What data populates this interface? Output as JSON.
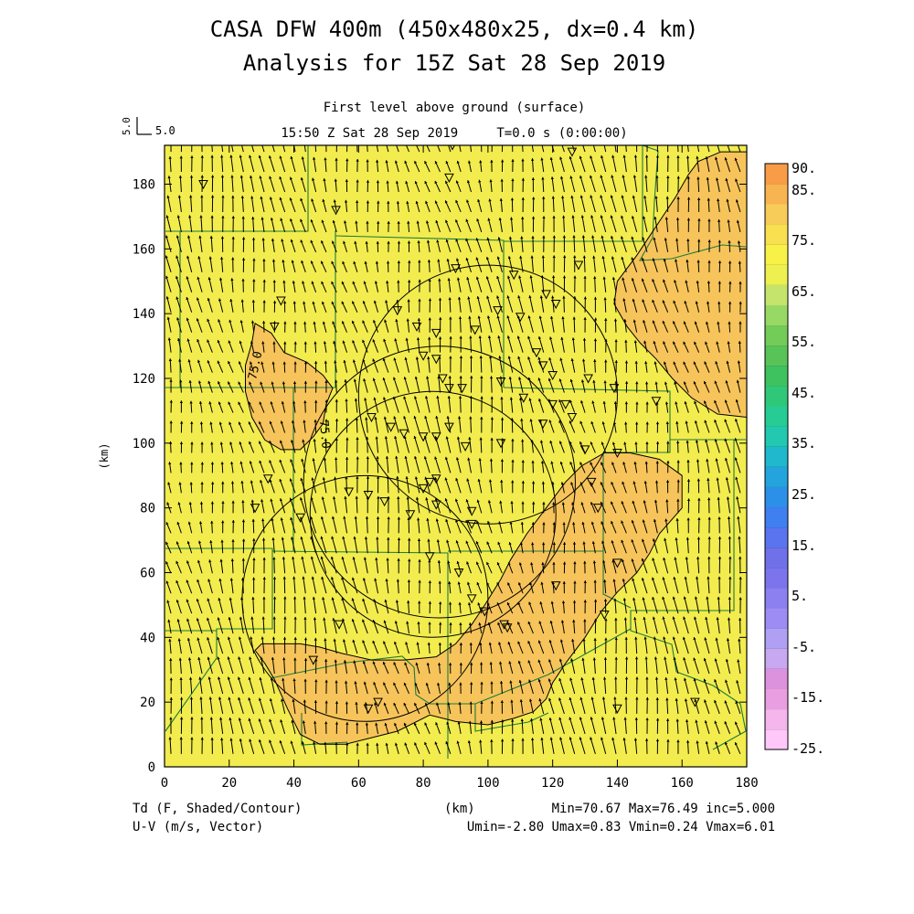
{
  "header": {
    "title_line1": "CASA DFW 400m (450x480x25, dx=0.4 km)",
    "title_line2": "Analysis for 15Z Sat 28 Sep 2019",
    "subtitle_level": "First level above ground (surface)",
    "subtitle_time": "15:50 Z Sat 28 Sep 2019     T=0.0 s (0:00:00)"
  },
  "vector_key": {
    "rotated_label": "5.0",
    "label": "5.0"
  },
  "footer": {
    "left_line1": "Td (F, Shaded/Contour)",
    "left_line2": "U-V (m/s, Vector)",
    "center_unit": "(km)",
    "stats_line1": "Min=70.67 Max=76.49 inc=5.000",
    "stats_line2": "Umin=-2.80 Umax=0.83 Vmin=0.24 Vmax=6.01"
  },
  "colors": {
    "base_fill": "#f2ec4e",
    "warm_fill": "#f6c45a",
    "contour": "#000000",
    "county_lines": "#1f7a3a",
    "vector": "#000000"
  },
  "chart_data": {
    "type": "heatmap",
    "variable": "Td (F, Shaded/Contour)",
    "vector_variable": "U-V (m/s, Vector)",
    "xlabel": "",
    "ylabel": "(km)",
    "xlim": [
      0,
      180
    ],
    "ylim": [
      0,
      192
    ],
    "x_ticks": [
      0,
      20,
      40,
      60,
      80,
      100,
      120,
      140,
      160,
      180
    ],
    "x_tick_labels": [
      "0",
      "20",
      "40",
      "60",
      "80",
      "100",
      "120",
      "140",
      "160",
      "180"
    ],
    "y_ticks": [
      0,
      20,
      40,
      60,
      80,
      100,
      120,
      140,
      160,
      180
    ],
    "y_tick_labels": [
      "0",
      "20",
      "40",
      "60",
      "80",
      "100",
      "120",
      "140",
      "160",
      "180"
    ],
    "contour_levels": [
      75.0
    ],
    "contour_labels": [
      "75.0",
      "75.0"
    ],
    "colorbar": {
      "labels": [
        "90.",
        "85.",
        "75.",
        "65.",
        "55.",
        "45.",
        "35.",
        "25.",
        "15.",
        "5.",
        "-5.",
        "-15.",
        "-25."
      ],
      "colors": [
        "#ffc8f8",
        "#f4b6ec",
        "#e89ee0",
        "#dc92dc",
        "#c8a8f0",
        "#b0a0f4",
        "#9c8cf4",
        "#8c80f0",
        "#7c74ec",
        "#7070e8",
        "#5a74f0",
        "#3f7ff0",
        "#2c8fe8",
        "#24a4dc",
        "#20b8cc",
        "#22c8b0",
        "#26cc94",
        "#2ec878",
        "#3ec260",
        "#58c458",
        "#74cc58",
        "#98d864",
        "#c4e46c",
        "#eef050",
        "#f8f248",
        "#f8e050",
        "#f8cc58",
        "#f8b450",
        "#f89c48"
      ]
    },
    "stats": {
      "min": 70.67,
      "max": 76.49,
      "inc": 5.0,
      "umin": -2.8,
      "umax": 0.83,
      "vmin": 0.24,
      "vmax": 6.01
    },
    "radar_rings": [
      {
        "center": [
          100,
          115
        ],
        "radius": 40
      },
      {
        "center": [
          83,
          78
        ],
        "radius": 38
      },
      {
        "center": [
          62,
          52
        ],
        "radius": 38
      },
      {
        "center": [
          85,
          88
        ],
        "radius": 42
      }
    ],
    "warm_regions": [
      [
        [
          28,
          137
        ],
        [
          33,
          134
        ],
        [
          37,
          128
        ],
        [
          44,
          125
        ],
        [
          49,
          121
        ],
        [
          52,
          117
        ],
        [
          50,
          112
        ],
        [
          49,
          106
        ],
        [
          46,
          102
        ],
        [
          42,
          98
        ],
        [
          36,
          98
        ],
        [
          31,
          101
        ],
        [
          27,
          108
        ],
        [
          25,
          116
        ],
        [
          25,
          124
        ],
        [
          27,
          131
        ]
      ],
      [
        [
          140,
          150
        ],
        [
          146,
          158
        ],
        [
          150,
          164
        ],
        [
          154,
          170
        ],
        [
          158,
          176
        ],
        [
          162,
          183
        ],
        [
          165,
          187
        ],
        [
          172,
          190
        ],
        [
          180,
          190
        ],
        [
          180,
          108
        ],
        [
          171,
          109
        ],
        [
          163,
          114
        ],
        [
          157,
          120
        ],
        [
          152,
          126
        ],
        [
          147,
          131
        ],
        [
          143,
          136
        ],
        [
          139,
          143
        ]
      ],
      [
        [
          28,
          36
        ],
        [
          31,
          32
        ],
        [
          34,
          27
        ],
        [
          38,
          18
        ],
        [
          42,
          10
        ],
        [
          48,
          7
        ],
        [
          56,
          7
        ],
        [
          64,
          9
        ],
        [
          72,
          11
        ],
        [
          82,
          16
        ],
        [
          90,
          14
        ],
        [
          100,
          13
        ],
        [
          108,
          15
        ],
        [
          114,
          17
        ],
        [
          118,
          21
        ],
        [
          120,
          26
        ],
        [
          124,
          32
        ],
        [
          130,
          40
        ],
        [
          135,
          48
        ],
        [
          140,
          54
        ],
        [
          146,
          60
        ],
        [
          150,
          66
        ],
        [
          153,
          72
        ],
        [
          160,
          80
        ],
        [
          160,
          90
        ],
        [
          153,
          95
        ],
        [
          144,
          97
        ],
        [
          136,
          97
        ],
        [
          129,
          93
        ],
        [
          124,
          88
        ],
        [
          118,
          80
        ],
        [
          112,
          72
        ],
        [
          107,
          64
        ],
        [
          104,
          58
        ],
        [
          99,
          50
        ],
        [
          95,
          44
        ],
        [
          90,
          38
        ],
        [
          84,
          34
        ],
        [
          74,
          33
        ],
        [
          64,
          33
        ],
        [
          55,
          35
        ],
        [
          48,
          37
        ],
        [
          42,
          38
        ],
        [
          36,
          38
        ],
        [
          30,
          38
        ]
      ]
    ],
    "station_markers": [
      [
        12,
        180
      ],
      [
        53,
        172
      ],
      [
        89,
        192
      ],
      [
        88,
        182
      ],
      [
        126,
        190
      ],
      [
        90,
        154
      ],
      [
        108,
        152
      ],
      [
        118,
        146
      ],
      [
        121,
        143
      ],
      [
        128,
        155
      ],
      [
        36,
        144
      ],
      [
        34,
        136
      ],
      [
        72,
        141
      ],
      [
        78,
        136
      ],
      [
        84,
        134
      ],
      [
        96,
        135
      ],
      [
        103,
        141
      ],
      [
        110,
        139
      ],
      [
        115,
        128
      ],
      [
        117,
        124
      ],
      [
        120,
        121
      ],
      [
        131,
        120
      ],
      [
        139,
        117
      ],
      [
        152,
        113
      ],
      [
        80,
        127
      ],
      [
        84,
        126
      ],
      [
        86,
        120
      ],
      [
        88,
        117
      ],
      [
        92,
        117
      ],
      [
        104,
        119
      ],
      [
        64,
        108
      ],
      [
        70,
        105
      ],
      [
        74,
        103
      ],
      [
        80,
        102
      ],
      [
        84,
        102
      ],
      [
        88,
        105
      ],
      [
        111,
        114
      ],
      [
        120,
        112
      ],
      [
        126,
        108
      ],
      [
        130,
        98
      ],
      [
        140,
        97
      ],
      [
        80,
        86
      ],
      [
        82,
        88
      ],
      [
        84,
        89
      ],
      [
        93,
        99
      ],
      [
        104,
        100
      ],
      [
        32,
        89
      ],
      [
        28,
        80
      ],
      [
        42,
        77
      ],
      [
        57,
        85
      ],
      [
        63,
        84
      ],
      [
        68,
        82
      ],
      [
        76,
        78
      ],
      [
        84,
        81
      ],
      [
        95,
        79
      ],
      [
        95,
        75
      ],
      [
        82,
        65
      ],
      [
        91,
        60
      ],
      [
        95,
        52
      ],
      [
        99,
        48
      ],
      [
        105,
        44
      ],
      [
        106,
        43
      ],
      [
        121,
        56
      ],
      [
        132,
        88
      ],
      [
        134,
        80
      ],
      [
        140,
        63
      ],
      [
        136,
        47
      ],
      [
        54,
        44
      ],
      [
        46,
        33
      ],
      [
        66,
        20
      ],
      [
        63,
        18
      ],
      [
        140,
        18
      ],
      [
        164,
        20
      ],
      [
        124,
        112
      ],
      [
        117,
        106
      ]
    ]
  }
}
